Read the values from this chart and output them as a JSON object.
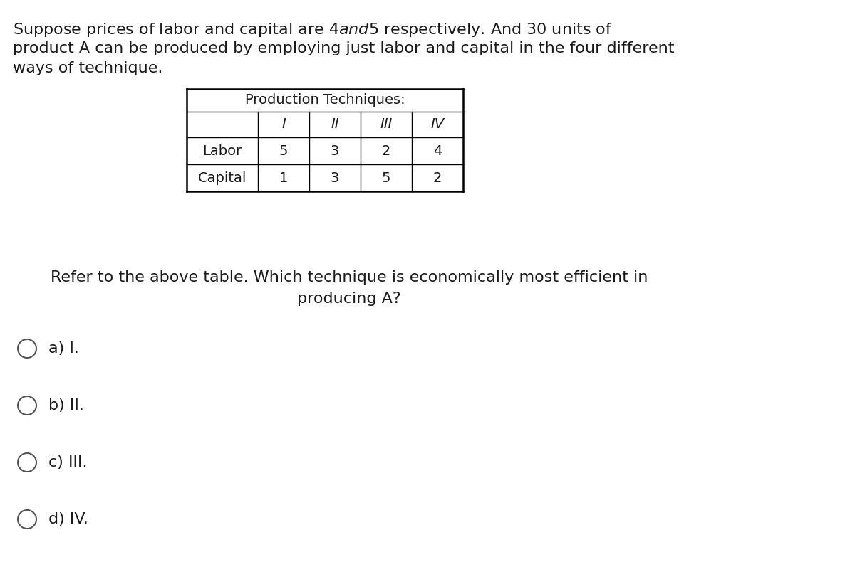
{
  "title_text_line1": "Suppose prices of labor and capital are $4 and $5 respectively. And 30 units of",
  "title_text_line2": "product A can be produced by employing just labor and capital in the four different",
  "title_text_line3": "ways of technique.",
  "table_header": "Production Techniques:",
  "techniques": [
    "I",
    "II",
    "III",
    "IV"
  ],
  "row_labels": [
    "Labor",
    "Capital"
  ],
  "table_data": [
    [
      5,
      3,
      2,
      4
    ],
    [
      1,
      3,
      5,
      2
    ]
  ],
  "question_line1": "Refer to the above table. Which technique is economically most efficient in",
  "question_line2": "producing A?",
  "options": [
    "a) I.",
    "b) II.",
    "c) III.",
    "d) IV."
  ],
  "bg_color": "#ffffff",
  "text_color": "#1a1a1a",
  "title_fontsize": 16,
  "question_fontsize": 16,
  "option_fontsize": 16,
  "table_fontsize": 14
}
